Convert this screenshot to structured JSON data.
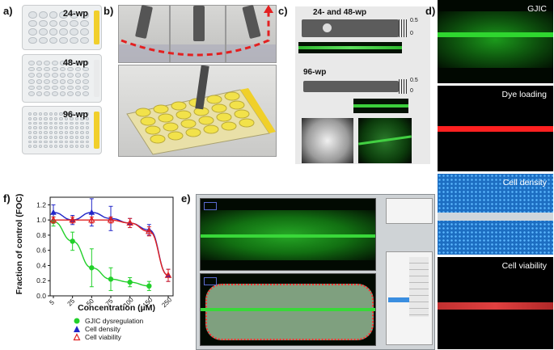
{
  "panels": {
    "a": {
      "label": "a)",
      "plates": [
        {
          "label": "24-wp",
          "rows": 4,
          "cols": 6
        },
        {
          "label": "48-wp",
          "rows": 6,
          "cols": 8
        },
        {
          "label": "96-wp",
          "rows": 8,
          "cols": 12
        }
      ]
    },
    "b": {
      "label": "b)"
    },
    "c": {
      "label": "c)",
      "title_top": "24- and 48-wp",
      "title_bottom": "96-wp",
      "ruler_ticks": [
        "0.5",
        "0"
      ]
    },
    "d": {
      "label": "d)",
      "subpanels": [
        {
          "label": "GJIC",
          "color": "#1fd01f"
        },
        {
          "label": "Dye loading",
          "color": "#ff2020"
        },
        {
          "label": "Cell density",
          "color": "#3aa8ff"
        },
        {
          "label": "Cell viability",
          "color": "#ff3030"
        }
      ]
    },
    "e": {
      "label": "e)"
    },
    "f": {
      "label": "f)"
    }
  },
  "chart_data": {
    "type": "line",
    "ylabel": "Fraction of control (FOC)",
    "xlabel": "Concentration (µM)",
    "x_ticks": [
      5,
      25,
      50,
      75,
      100,
      150,
      250
    ],
    "y_ticks": [
      0,
      0.2,
      0.4,
      0.6,
      0.8,
      1.0,
      1.2
    ],
    "ylim": [
      0,
      1.3
    ],
    "series": [
      {
        "name": "GJIC dysregulation",
        "color": "#22d02a",
        "marker": "circle",
        "x": [
          5,
          25,
          50,
          75,
          100,
          150
        ],
        "y": [
          0.98,
          0.72,
          0.37,
          0.22,
          0.18,
          0.13
        ],
        "err": [
          0.06,
          0.12,
          0.25,
          0.15,
          0.06,
          0.06
        ]
      },
      {
        "name": "Cell density",
        "color": "#2226c8",
        "marker": "triangle",
        "x": [
          5,
          25,
          50,
          75,
          100,
          150,
          250
        ],
        "y": [
          1.1,
          1.0,
          1.1,
          1.02,
          0.96,
          0.87,
          0.27
        ],
        "err": [
          0.1,
          0.06,
          0.18,
          0.16,
          0.06,
          0.07,
          0.08
        ]
      },
      {
        "name": "Cell viability",
        "color": "#e02020",
        "marker": "triangle-open",
        "x": [
          5,
          25,
          50,
          75,
          100,
          150,
          250
        ],
        "y": [
          1.0,
          1.0,
          1.0,
          1.0,
          0.96,
          0.85,
          0.27
        ],
        "err": [
          0.04,
          0.04,
          0.04,
          0.04,
          0.06,
          0.06,
          0.08
        ]
      }
    ],
    "legend_position": "bottom-left"
  }
}
